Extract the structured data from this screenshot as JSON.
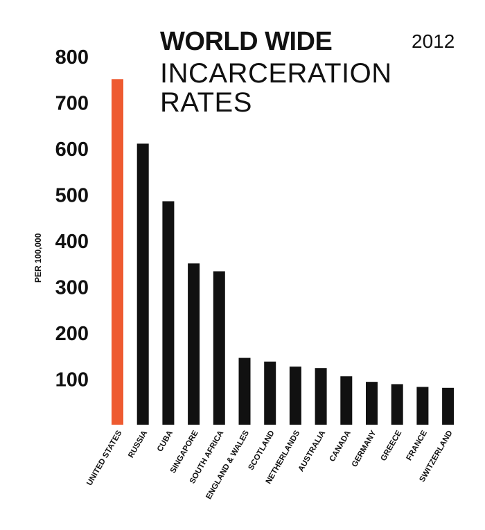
{
  "header": {
    "title_bold": "WORLD WIDE",
    "title_line1": "INCARCERATION",
    "title_line2": "RATES",
    "year": "2012"
  },
  "colors": {
    "highlight": "#EE5A30",
    "bar": "#111111",
    "text": "#111111"
  },
  "chart_data": {
    "type": "bar",
    "title": "WORLD WIDE INCARCERATION RATES",
    "subtitle": "2012",
    "xlabel": "",
    "ylabel": "PER 100,000",
    "ylim": [
      0,
      800
    ],
    "yticks": [
      100,
      200,
      300,
      400,
      500,
      600,
      700,
      800
    ],
    "grid": false,
    "legend": "none",
    "categories": [
      "UNITED STATES",
      "RUSSIA",
      "CUBA",
      "SINGAPORE",
      "SOUTH AFRICA",
      "ENGLAND & WALES",
      "SCOTLAND",
      "NETHERLANDS",
      "AUSTRALIA",
      "CANADA",
      "GERMANY",
      "GREECE",
      "FRANCE",
      "SWITZERLAND"
    ],
    "values": [
      750,
      610,
      485,
      350,
      333,
      145,
      137,
      126,
      123,
      105,
      93,
      88,
      82,
      80
    ],
    "highlight_index": 0
  }
}
